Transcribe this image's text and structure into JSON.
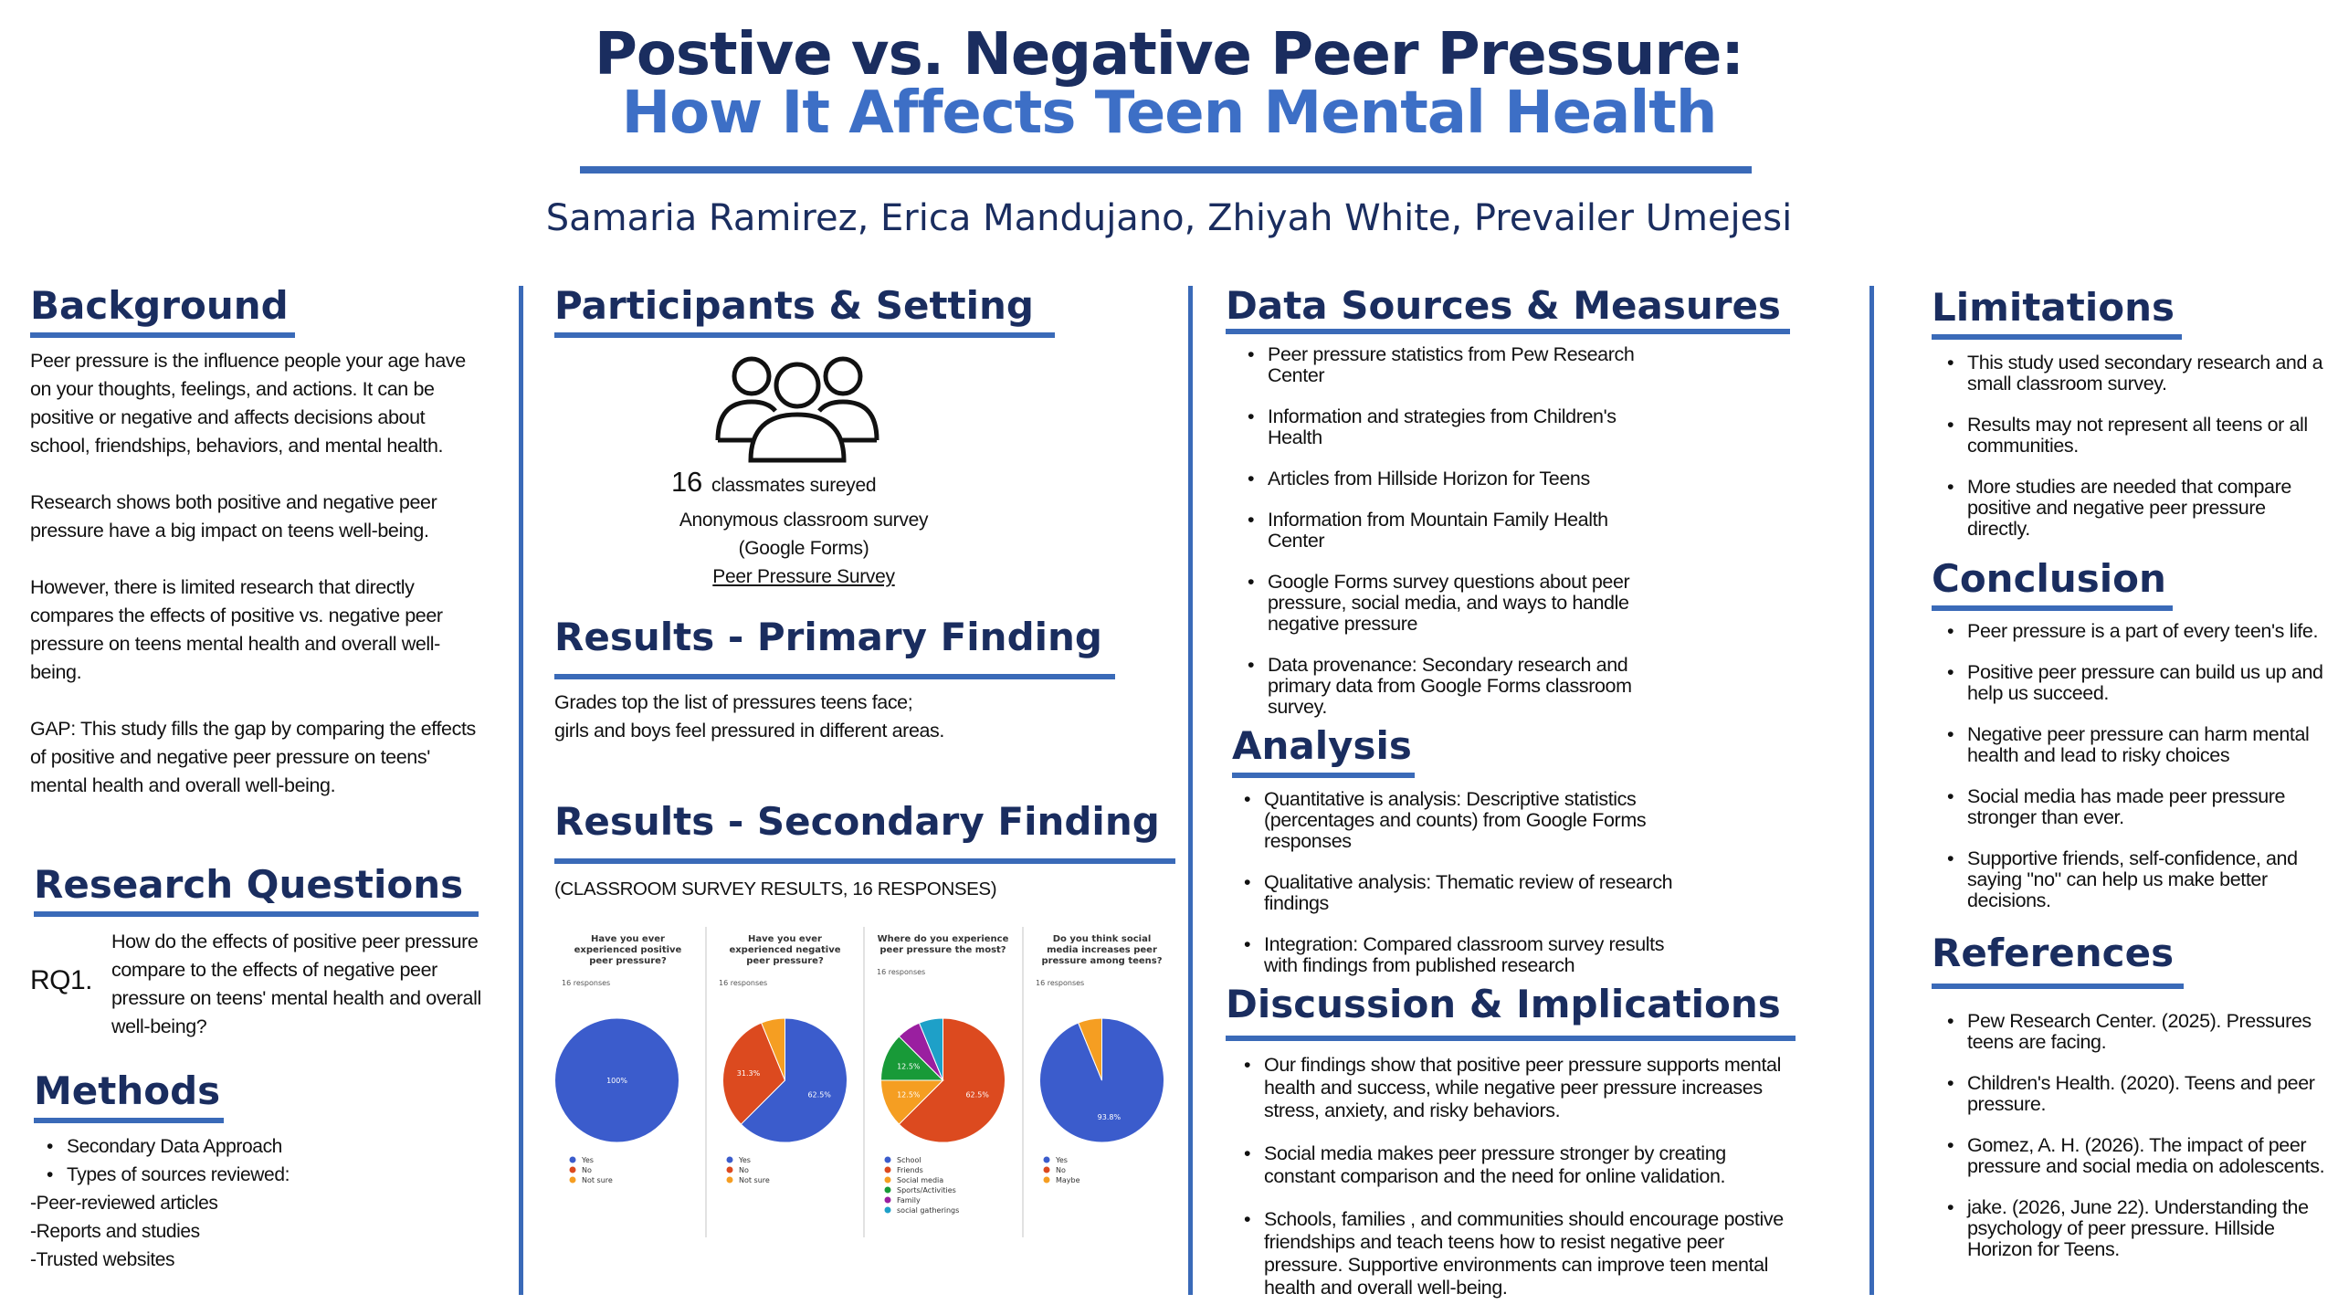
{
  "title": {
    "line1": "Postive vs. Negative Peer Pressure:",
    "line2": "How It Affects Teen Mental Health",
    "authors": "Samaria Ramirez, Erica Mandujano, Zhiyah White, Prevailer Umejesi"
  },
  "background": {
    "heading": "Background",
    "p1": "Peer pressure is the influence people your age have on your thoughts, feelings, and actions. It can be positive or negative and affects decisions about school, friendships, behaviors, and mental health.",
    "p2": "Research shows both positive and negative peer pressure have a big impact on teens well-being.",
    "p3": "However, there is limited research that directly compares the effects of positive vs. negative peer pressure on teens mental health and overall well-being.",
    "p4": "GAP: This study fills the gap by comparing the effects of positive and negative peer pressure on teens' mental health and overall well-being."
  },
  "research_questions": {
    "heading": "Research Questions",
    "rq_label": "RQ1.",
    "rq_text": "How do the effects of positive peer pressure compare to the effects of negative peer pressure on teens' mental health and overall well-being?"
  },
  "methods": {
    "heading": "Methods",
    "items": [
      "Secondary Data Approach",
      "Types of sources reviewed:"
    ],
    "sub_items": [
      "-Peer-reviewed articles",
      "-Reports and studies",
      "-Trusted websites"
    ]
  },
  "participants": {
    "heading": "Participants & Setting",
    "icon": "people-group-icon",
    "count": "16",
    "count_label": "classmates sureyed",
    "line2": "Anonymous classroom survey",
    "line3": "(Google Forms)",
    "link": "Peer Pressure Survey"
  },
  "primary": {
    "heading": "Results - Primary Finding",
    "text": "Grades top the list of pressures teens face; girls and boys feel pressured in different areas."
  },
  "secondary": {
    "heading": "Results - Secondary Finding",
    "caption": "(CLASSROOM SURVEY RESULTS, 16 RESPONSES)"
  },
  "chart_data": [
    {
      "type": "pie",
      "title": "Have you ever experienced positive peer pressure?",
      "subtitle": "16 responses",
      "categories": [
        "Yes",
        "No",
        "Not sure"
      ],
      "values": [
        100,
        0,
        0
      ],
      "labels": [
        "100%",
        "",
        ""
      ],
      "colors": [
        "#3b5ccc",
        "#dc4a1f",
        "#f59e22"
      ],
      "legend_placement": "bottom"
    },
    {
      "type": "pie",
      "title": "Have you ever experienced negative peer pressure?",
      "subtitle": "16 responses",
      "categories": [
        "Yes",
        "No",
        "Not sure"
      ],
      "values": [
        62.5,
        31.3,
        6.2
      ],
      "labels": [
        "62.5%",
        "31.3%",
        ""
      ],
      "colors": [
        "#3b5ccc",
        "#dc4a1f",
        "#f59e22"
      ],
      "legend_placement": "bottom"
    },
    {
      "type": "pie",
      "title": "Where do you experience peer pressure the most?",
      "subtitle": "16 responses",
      "categories": [
        "School",
        "Friends",
        "Social media",
        "Sports/Activities",
        "Family",
        "social gatherings"
      ],
      "values": [
        0,
        62.5,
        12.5,
        12.5,
        6.25,
        6.25
      ],
      "labels": [
        "",
        "62.5%",
        "12.5%",
        "12.5%",
        "",
        ""
      ],
      "colors": [
        "#3b5ccc",
        "#dc4a1f",
        "#f59e22",
        "#189a38",
        "#9a1fa0",
        "#1ea0c8"
      ],
      "legend_placement": "bottom"
    },
    {
      "type": "pie",
      "title": "Do you think social media increases peer pressure among teens?",
      "subtitle": "16 responses",
      "categories": [
        "Yes",
        "No",
        "Maybe"
      ],
      "values": [
        93.8,
        0,
        6.2
      ],
      "labels": [
        "93.8%",
        "",
        ""
      ],
      "colors": [
        "#3b5ccc",
        "#dc4a1f",
        "#f59e22"
      ],
      "legend_placement": "bottom"
    }
  ],
  "data_sources": {
    "heading": "Data Sources & Measures",
    "items": [
      "Peer pressure statistics from Pew Research Center",
      "Information and strategies from Children's Health",
      "Articles from Hillside Horizon for Teens",
      "Information from Mountain Family Health Center",
      "Google Forms survey questions about peer pressure, social media, and ways to handle negative pressure",
      "Data provenance: Secondary research and primary data from Google Forms classroom survey."
    ]
  },
  "analysis": {
    "heading": "Analysis",
    "items": [
      "Quantitative is analysis: Descriptive statistics (percentages and counts) from Google Forms responses",
      "Qualitative analysis: Thematic review of research findings",
      "Integration: Compared classroom survey results with findings from published research"
    ]
  },
  "discussion": {
    "heading": "Discussion & Implications",
    "items": [
      "Our findings show that positive peer pressure supports mental health and success, while negative peer pressure increases stress, anxiety, and risky behaviors.",
      "Social media makes peer pressure stronger by creating constant comparison and the need for online validation.",
      "Schools, families , and communities should encourage postive friendships and teach teens how to resist negative peer pressure. Supportive environments can improve teen mental health and overall well-being."
    ]
  },
  "limitations": {
    "heading": "Limitations",
    "items": [
      "This study used secondary research and a small classroom survey.",
      "Results may not represent all teens or all communities.",
      "More studies are needed that compare positive and negative peer pressure directly."
    ]
  },
  "conclusion": {
    "heading": "Conclusion",
    "items": [
      "Peer pressure is a part of every teen's life.",
      "Positive peer pressure can build us up and help us succeed.",
      "Negative peer pressure can harm mental health and lead to risky choices",
      "Social media has made peer pressure stronger than ever.",
      "Supportive friends, self-confidence, and saying \"no\" can help us make better decisions."
    ]
  },
  "references": {
    "heading": "References",
    "items": [
      "Pew Research Center. (2025). Pressures teens are facing.",
      "Children's Health. (2020). Teens and peer pressure.",
      "Gomez, A. H. (2026). The impact of peer pressure and social media on adolescents.",
      "jake. (2026, June 22). Understanding the psychology of peer pressure. Hillside Horizon for Teens."
    ]
  }
}
